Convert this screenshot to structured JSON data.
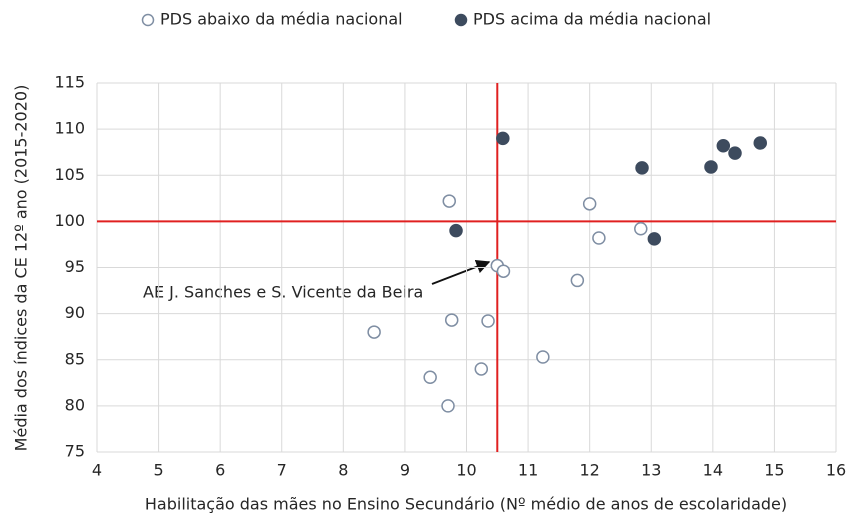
{
  "chart_data": {
    "type": "scatter",
    "x_label": "Habilitação das mães no Ensino Secundário (Nº médio de anos de escolaridade)",
    "y_label": "Média dos índices da CE 12º ano (2015-2020)",
    "xlim": [
      4,
      16
    ],
    "xticks": [
      4,
      5,
      6,
      7,
      8,
      9,
      10,
      11,
      12,
      13,
      14,
      15,
      16
    ],
    "ylim": [
      75,
      115
    ],
    "yticks": [
      75,
      80,
      85,
      90,
      95,
      100,
      105,
      110,
      115
    ],
    "grid": true,
    "legend": "top",
    "vline": 10.5,
    "hline": 100,
    "reference_color": "#e02020",
    "series": [
      {
        "name": "PDS abaixo da média nacional",
        "color": "#7f8ea3",
        "filled": false,
        "x": [
          9.72,
          12.0,
          12.83,
          12.15,
          10.5,
          10.6,
          11.8,
          8.5,
          9.76,
          10.35,
          11.24,
          10.24,
          9.41,
          9.7
        ],
        "values": [
          102.2,
          101.9,
          99.2,
          98.2,
          95.2,
          94.6,
          93.6,
          88.0,
          89.3,
          89.2,
          85.3,
          84.0,
          83.1,
          80.0
        ]
      },
      {
        "name": "PDS acima da média nacional",
        "color": "#3d4b5e",
        "filled": true,
        "x": [
          10.59,
          12.85,
          14.17,
          14.36,
          14.77,
          13.97,
          9.83,
          13.05
        ],
        "values": [
          109.0,
          105.8,
          108.2,
          107.4,
          108.5,
          105.9,
          99.0,
          98.1
        ]
      }
    ],
    "annotation": "AE J. Sanches e S. Vicente da Beira"
  }
}
